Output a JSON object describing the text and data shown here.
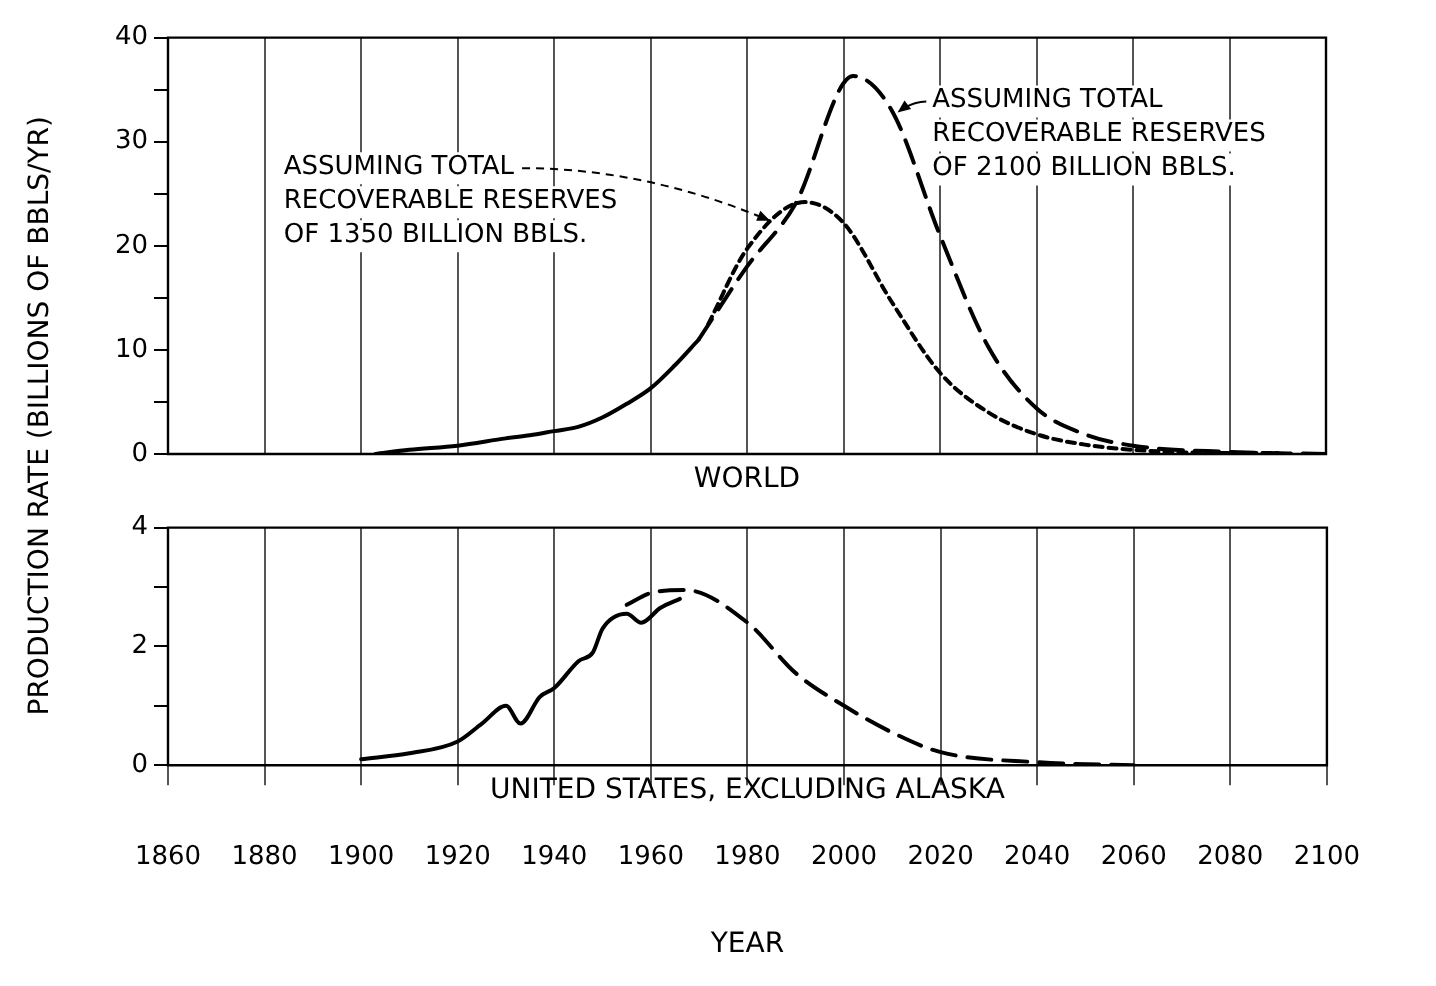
{
  "chart_data": [
    {
      "type": "line",
      "title": "WORLD",
      "ylabel": "PRODUCTION RATE (BILLIONS OF BBLS/YR)",
      "xlim": [
        1860,
        2100
      ],
      "xticks": [
        1860,
        1880,
        1900,
        1920,
        1940,
        1960,
        1980,
        2000,
        2020,
        2040,
        2060,
        2080,
        2100
      ],
      "ylim": [
        0,
        40
      ],
      "yticks": [
        0,
        {
          "value": 5,
          "label": null
        },
        10,
        {
          "value": 15,
          "label": null
        },
        20,
        {
          "value": 25,
          "label": null
        },
        30,
        {
          "value": 35,
          "label": null
        },
        40
      ],
      "tick_labels": "y",
      "grid": "x",
      "marker": "none",
      "series": [
        {
          "color": "#000000",
          "line_style": "solid",
          "x": [
            1903,
            1910,
            1920,
            1930,
            1935,
            1940,
            1945,
            1950,
            1955,
            1960,
            1965,
            1970
          ],
          "values": [
            0,
            0.4,
            0.8,
            1.5,
            1.8,
            2.2,
            2.6,
            3.5,
            4.8,
            6.3,
            8.5,
            11
          ]
        },
        {
          "name": "ASSUMING TOTAL RECOVERABLE RESERVES OF 1350 BILLION BBLS.",
          "color": "#000000",
          "line_style": "dotted",
          "x": [
            1972,
            1980,
            1992,
            2000,
            2010,
            2020,
            2030,
            2040,
            2050,
            2060,
            2080,
            2090
          ],
          "values": [
            12.5,
            19.7,
            24.2,
            22.2,
            14.6,
            7.8,
            4,
            1.9,
            0.9,
            0.4,
            0.1,
            0.1
          ]
        },
        {
          "name": "ASSUMING TOTAL RECOVERABLE RESERVES OF 2100 BILLION BBLS.",
          "color": "#000000",
          "line_style": "dashed",
          "x": [
            1970,
            1980,
            1990,
            2002,
            2010,
            2020,
            2030,
            2040,
            2050,
            2060,
            2080,
            2100
          ],
          "values": [
            11,
            18,
            24,
            36.3,
            33,
            21,
            10.3,
            4.4,
            1.9,
            0.8,
            0.2,
            0
          ]
        }
      ]
    },
    {
      "type": "line",
      "title": "UNITED STATES, EXCLUDING ALASKA",
      "xlabel": "YEAR",
      "xlim": [
        1860,
        2100
      ],
      "xticks": [
        1860,
        1880,
        1900,
        1920,
        1940,
        1960,
        1980,
        2000,
        2020,
        2040,
        2060,
        2080,
        2100
      ],
      "ylim": [
        0,
        4
      ],
      "yticks": [
        0,
        {
          "value": 1,
          "label": null
        },
        2,
        {
          "value": 3,
          "label": null
        },
        4
      ],
      "grid": "x",
      "marker": "none",
      "series": [
        {
          "color": "#000000",
          "line_style": "solid",
          "x": [
            1900,
            1910,
            1920,
            1925,
            1930,
            1933,
            1937,
            1940,
            1945,
            1948,
            1950,
            1955,
            1958,
            1962,
            1966
          ],
          "values": [
            0.1,
            0.2,
            0.4,
            0.7,
            1.0,
            0.7,
            1.15,
            1.3,
            1.75,
            1.9,
            2.3,
            2.55,
            2.4,
            2.65,
            2.8
          ]
        },
        {
          "color": "#000000",
          "line_style": "dashed",
          "x": [
            1955,
            1960,
            1967,
            1980,
            1990,
            2000,
            2010,
            2020,
            2040,
            2060
          ],
          "values": [
            2.7,
            2.9,
            2.95,
            2.4,
            1.55,
            1.0,
            0.55,
            0.22,
            0.05,
            0
          ]
        }
      ]
    }
  ]
}
